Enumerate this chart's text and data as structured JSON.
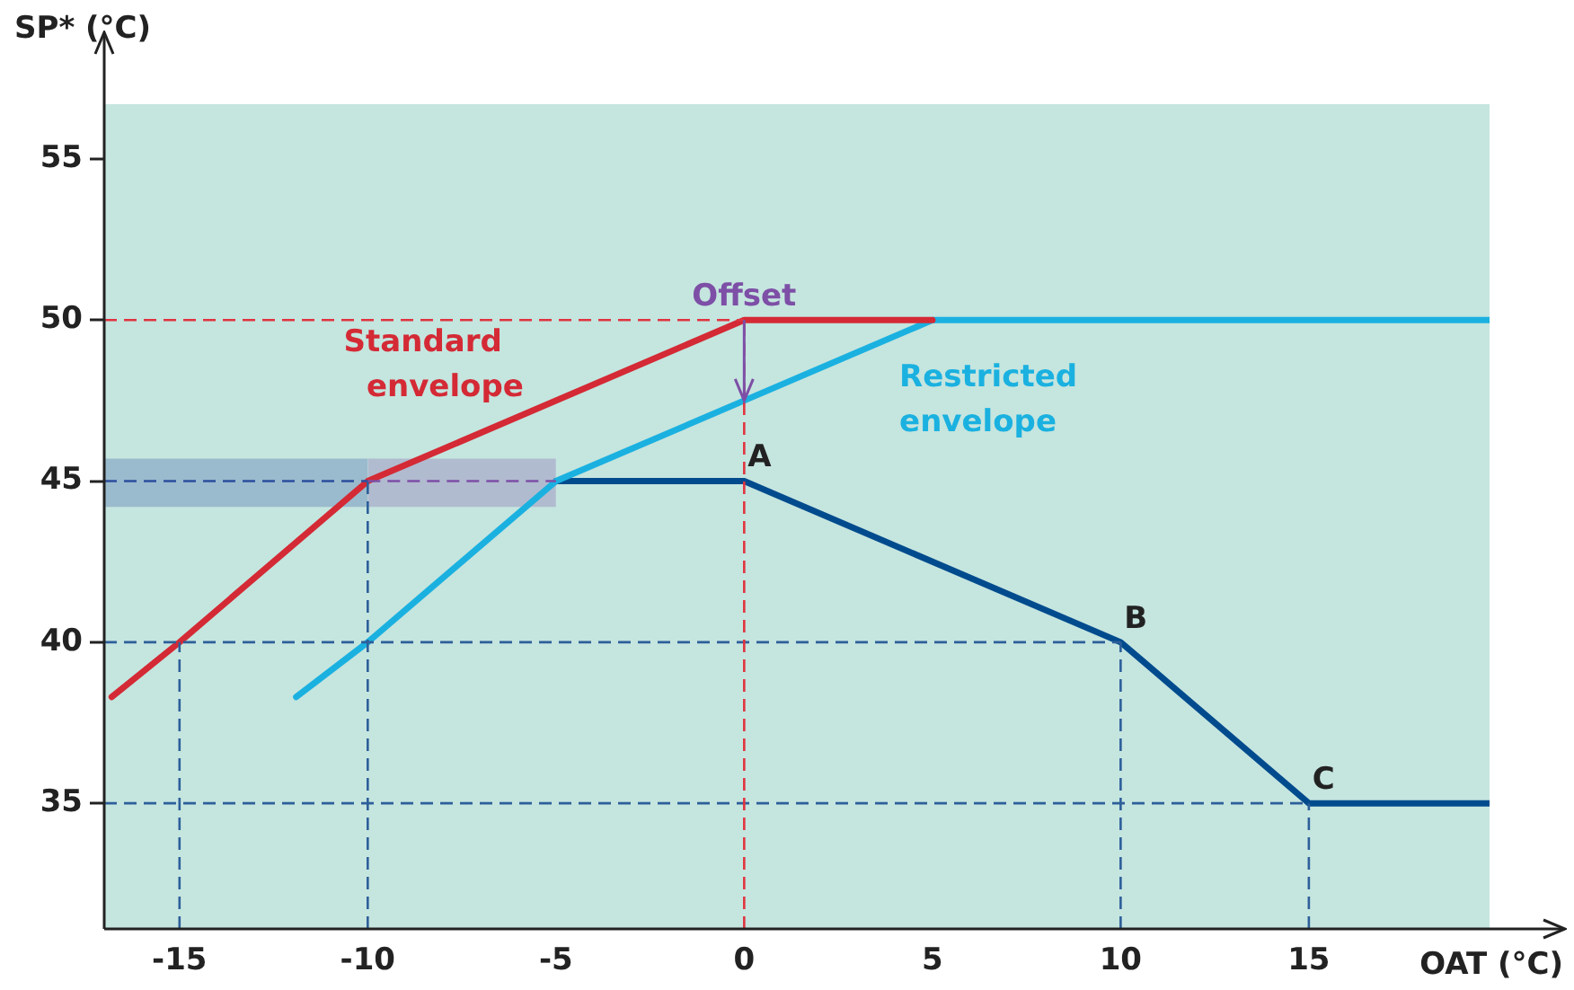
{
  "chart_data": {
    "type": "line",
    "xlabel": "OAT (°C)",
    "ylabel": "SP* (°C)",
    "xlim": [
      -17,
      19.8
    ],
    "ylim": [
      31.1,
      56.7
    ],
    "xticks": [
      -15,
      -10,
      -5,
      0,
      5,
      10,
      15
    ],
    "yticks": [
      35,
      40,
      45,
      50,
      55
    ],
    "grid": false,
    "legend": false,
    "marker": "none",
    "line_style": "solid",
    "series": [
      {
        "name": "Standard envelope",
        "color": "#d42a35",
        "x": [
          -16.8,
          -15,
          -10,
          0,
          5
        ],
        "values": [
          38.3,
          40,
          45,
          50,
          50
        ]
      },
      {
        "name": "Restricted envelope",
        "color": "#1ab1e0",
        "x": [
          -11.9,
          -10,
          -5,
          0,
          5,
          19.8
        ],
        "values": [
          38.3,
          40,
          45,
          47.5,
          50,
          50
        ]
      },
      {
        "color": "#004b8d",
        "x": [
          -5,
          0,
          10,
          15,
          19.8
        ],
        "values": [
          45,
          45,
          40,
          35,
          35
        ]
      },
      {
        "color": "#2c4f9e",
        "line_style": "dashed",
        "x": [
          -17,
          -10
        ],
        "values": [
          45,
          45
        ],
        "lower": [
          44.2,
          44.2
        ],
        "upper": [
          45.7,
          45.7
        ]
      },
      {
        "color": "#7d4fa6",
        "line_style": "dashed",
        "x": [
          -10,
          -5
        ],
        "values": [
          45,
          45
        ],
        "lower": [
          44.2,
          44.2
        ],
        "upper": [
          45.7,
          45.7
        ]
      },
      {
        "color": "#e0343f",
        "line_style": "dashed",
        "x": [
          -17,
          0
        ],
        "values": [
          50,
          50
        ]
      },
      {
        "color": "#e0343f",
        "line_style": "dashed",
        "x": [
          0,
          0
        ],
        "values": [
          31.1,
          50
        ]
      },
      {
        "color": "#2d5f9a",
        "line_style": "dashed",
        "x": [
          -17,
          10
        ],
        "values": [
          40,
          40
        ]
      },
      {
        "color": "#2d5f9a",
        "line_style": "dashed",
        "x": [
          -17,
          15
        ],
        "values": [
          35,
          35
        ]
      },
      {
        "color": "#2d5f9a",
        "line_style": "dashed",
        "x": [
          -15,
          -15
        ],
        "values": [
          31.1,
          40
        ]
      },
      {
        "color": "#2d5f9a",
        "line_style": "dashed",
        "x": [
          -10,
          -10
        ],
        "values": [
          31.1,
          45
        ]
      },
      {
        "color": "#2d5f9a",
        "line_style": "dashed",
        "x": [
          10,
          10
        ],
        "values": [
          31.1,
          40
        ]
      },
      {
        "color": "#2d5f9a",
        "line_style": "dashed",
        "x": [
          15,
          15
        ],
        "values": [
          31.1,
          35
        ]
      }
    ],
    "annotations": [
      {
        "text": "Offset",
        "x": 0,
        "y": 50
      },
      {
        "text": "A",
        "x": 0,
        "y": 45
      },
      {
        "text": "B",
        "x": 10,
        "y": 40
      },
      {
        "text": "C",
        "x": 15,
        "y": 35
      }
    ]
  }
}
